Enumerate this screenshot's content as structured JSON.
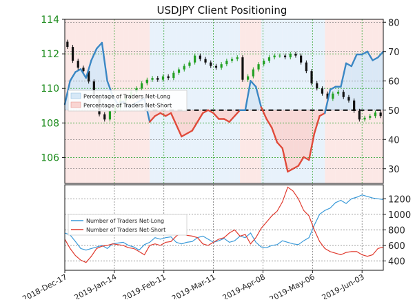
{
  "chart_data": [
    {
      "type": "line",
      "title": "USDJPY Client Positioning",
      "x_tick_labels": [
        "2018-Dec-17",
        "2019-Jan-14",
        "2019-Feb-11",
        "2019-Mar-11",
        "2019-Apr-08",
        "2019-May-06",
        "2019-Jun-03"
      ],
      "left_axis": {
        "ylim": [
          104.5,
          114
        ],
        "ticks": [
          106,
          108,
          110,
          112,
          114
        ],
        "color": "#1a8a1a"
      },
      "right_axis": {
        "ylim": [
          25,
          81
        ],
        "ticks": [
          30,
          40,
          50,
          60,
          70,
          80
        ]
      },
      "grid": true,
      "legend_location": "left",
      "legend": [
        "Percentage of Traders Net-Long",
        "Percentage of Traders Net-Short"
      ],
      "reference_line": {
        "axis": "right",
        "value": 50,
        "style": "dashed"
      },
      "colors": {
        "net_long": "#3a87c4",
        "net_short": "#e04a3a",
        "long_fill": "#d6e8f7",
        "short_fill": "#f9d5d2",
        "candle_up": "#22a022",
        "candle_down": "#111111"
      },
      "price_series": {
        "name": "USDJPY",
        "axis": "left",
        "x": [
          0,
          3,
          6,
          9,
          12,
          15,
          18,
          21,
          24,
          27,
          30,
          33,
          36,
          39,
          42,
          45,
          48,
          51,
          54,
          57,
          60,
          63,
          66,
          69,
          72,
          75,
          78,
          81,
          84,
          87,
          90,
          93,
          96,
          99,
          102,
          105,
          108,
          111,
          114,
          117,
          120,
          123,
          126,
          129,
          132,
          135,
          138,
          141,
          144,
          147,
          150,
          153,
          156,
          159,
          162,
          165,
          168,
          171,
          174,
          177,
          180
        ],
        "values": [
          112.7,
          112.4,
          111.6,
          111.2,
          111.0,
          110.4,
          109.5,
          108.5,
          108.2,
          108.7,
          108.9,
          109.3,
          109.5,
          109.8,
          110.0,
          110.3,
          110.5,
          110.6,
          110.5,
          110.7,
          110.6,
          110.9,
          111.1,
          111.3,
          111.5,
          111.9,
          111.7,
          111.5,
          111.3,
          111.2,
          111.4,
          111.6,
          111.7,
          111.8,
          110.5,
          110.7,
          111.1,
          111.4,
          111.6,
          111.8,
          111.9,
          111.9,
          111.8,
          112.0,
          111.9,
          111.5,
          111.0,
          110.3,
          110.0,
          109.7,
          109.4,
          109.7,
          109.8,
          109.5,
          109.3,
          108.7,
          108.2,
          108.3,
          108.4,
          108.6,
          108.4
        ]
      },
      "series": [
        {
          "axis": "right",
          "x": [
            0,
            3,
            6,
            9,
            12,
            15,
            18,
            21,
            24,
            27,
            30,
            33,
            36,
            39,
            42,
            45,
            48,
            51,
            54,
            57,
            60,
            63,
            66,
            69,
            72,
            75,
            78,
            81,
            84,
            87,
            90,
            93,
            96,
            99,
            102,
            105,
            108,
            111,
            114,
            117,
            120,
            123,
            126,
            129,
            132,
            135,
            138,
            141,
            144,
            147,
            150,
            153,
            156,
            159,
            162,
            165,
            168,
            171,
            174,
            177,
            180
          ],
          "values": [
            52,
            60,
            63,
            64,
            61,
            67,
            71,
            73,
            60,
            55,
            52,
            53,
            51,
            52,
            53,
            54,
            46,
            48,
            49,
            48,
            49,
            45,
            41,
            42,
            43,
            46,
            49,
            50,
            49,
            47,
            47,
            46,
            48,
            50,
            50,
            60,
            58,
            51,
            47,
            44,
            39,
            37,
            29,
            30,
            31,
            34,
            33,
            42,
            48,
            49,
            57,
            58,
            58,
            66,
            65,
            69,
            69,
            70,
            67,
            68,
            70
          ]
        }
      ]
    },
    {
      "type": "line",
      "x_tick_labels": [
        "2018-Dec-17",
        "2019-Jan-14",
        "2019-Feb-11",
        "2019-Mar-11",
        "2019-Apr-08",
        "2019-May-06",
        "2019-Jun-03"
      ],
      "ylim": [
        280,
        1380
      ],
      "yticks": [
        400,
        600,
        800,
        1000,
        1200
      ],
      "grid": true,
      "legend_location": "left",
      "series": [
        {
          "name": "Number of Traders Net-Long",
          "color": "#3a9ad9",
          "x": [
            0,
            3,
            6,
            9,
            12,
            15,
            18,
            21,
            24,
            27,
            30,
            33,
            36,
            39,
            42,
            45,
            48,
            51,
            54,
            57,
            60,
            63,
            66,
            69,
            72,
            75,
            78,
            81,
            84,
            87,
            90,
            93,
            96,
            99,
            102,
            105,
            108,
            111,
            114,
            117,
            120,
            123,
            126,
            129,
            132,
            135,
            138,
            141,
            144,
            147,
            150,
            153,
            156,
            159,
            162,
            165,
            168,
            171,
            174,
            177,
            180
          ],
          "values": [
            760,
            735,
            650,
            560,
            540,
            560,
            580,
            600,
            560,
            620,
            630,
            640,
            600,
            580,
            540,
            610,
            640,
            700,
            680,
            700,
            710,
            640,
            620,
            640,
            650,
            700,
            720,
            680,
            640,
            660,
            690,
            640,
            660,
            720,
            700,
            760,
            640,
            580,
            570,
            600,
            610,
            660,
            640,
            620,
            610,
            660,
            700,
            860,
            1000,
            1050,
            1080,
            1150,
            1180,
            1140,
            1200,
            1220,
            1250,
            1230,
            1210,
            1200,
            1190
          ]
        },
        {
          "name": "Number of Traders Net-Short",
          "color": "#e03a2e",
          "x": [
            0,
            3,
            6,
            9,
            12,
            15,
            18,
            21,
            24,
            27,
            30,
            33,
            36,
            39,
            42,
            45,
            48,
            51,
            54,
            57,
            60,
            63,
            66,
            69,
            72,
            75,
            78,
            81,
            84,
            87,
            90,
            93,
            96,
            99,
            102,
            105,
            108,
            111,
            114,
            117,
            120,
            123,
            126,
            129,
            132,
            135,
            138,
            141,
            144,
            147,
            150,
            153,
            156,
            159,
            162,
            165,
            168,
            171,
            174,
            177,
            180
          ],
          "values": [
            680,
            560,
            470,
            410,
            380,
            460,
            560,
            590,
            600,
            620,
            610,
            600,
            570,
            560,
            520,
            480,
            600,
            620,
            600,
            640,
            650,
            720,
            760,
            730,
            720,
            700,
            620,
            600,
            640,
            680,
            700,
            760,
            800,
            720,
            740,
            620,
            700,
            820,
            900,
            980,
            1040,
            1160,
            1350,
            1300,
            1200,
            1050,
            980,
            800,
            650,
            560,
            520,
            500,
            480,
            510,
            520,
            520,
            480,
            460,
            480,
            560,
            580
          ]
        }
      ]
    }
  ]
}
